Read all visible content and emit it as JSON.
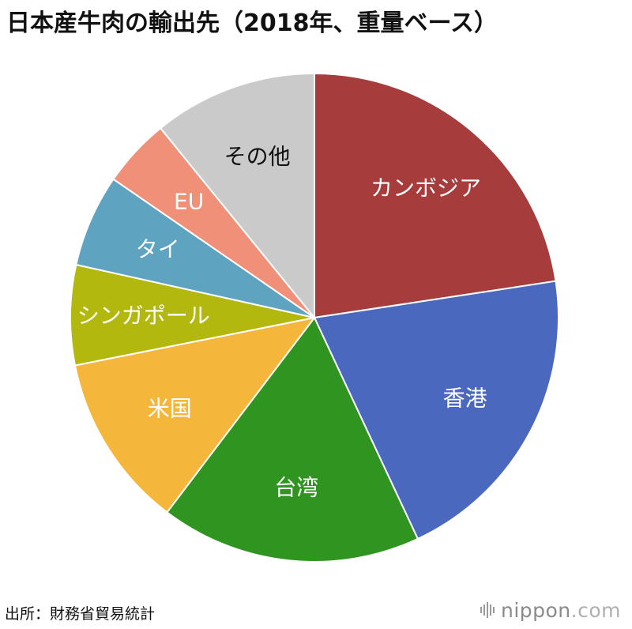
{
  "title": "日本産牛肉の輸出先（2018年、重量ベース）",
  "source": "出所：財務省貿易統計",
  "logo": {
    "name": "nippon",
    "suffix": ".com"
  },
  "chart_data": {
    "type": "pie",
    "title": "日本産牛肉の輸出先（2018年、重量ベース）",
    "start": "12 o'clock",
    "direction": "clockwise",
    "slices": [
      {
        "label": "カンボジア",
        "value": 22.9,
        "color": "#a63c3c"
      },
      {
        "label": "香港",
        "value": 20.7,
        "color": "#4a68bd"
      },
      {
        "label": "台湾",
        "value": 17.5,
        "color": "#2f9420"
      },
      {
        "label": "米国",
        "value": 11.7,
        "color": "#f4b73b"
      },
      {
        "label": "シンガポール",
        "value": 6.7,
        "color": "#b2b80e"
      },
      {
        "label": "タイ",
        "value": 6.2,
        "color": "#5ea3c0"
      },
      {
        "label": "EU",
        "value": 4.6,
        "color": "#f09078"
      },
      {
        "label": "その他",
        "value": 11.0,
        "color": "#cacaca",
        "label_color": "#111111"
      }
    ]
  }
}
